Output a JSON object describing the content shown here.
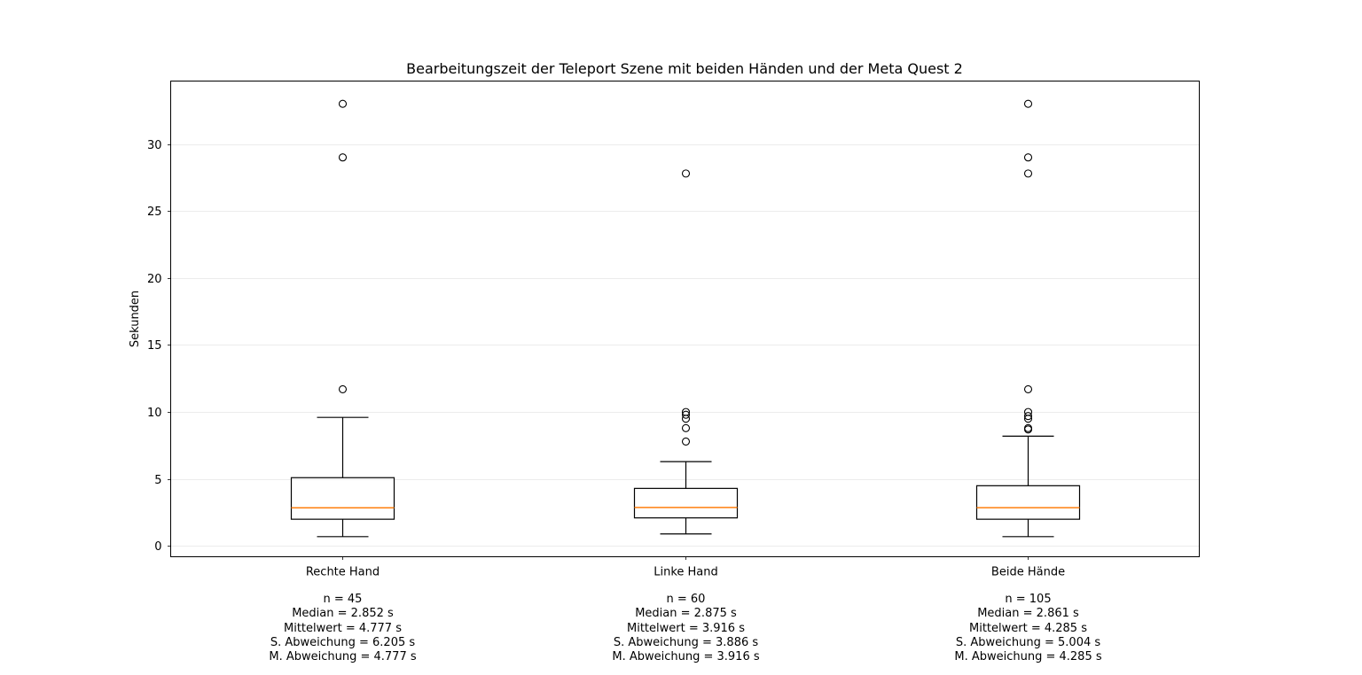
{
  "chart_data": {
    "type": "box",
    "title": "Bearbeitungszeit der Teleport Szene mit beiden Händen und der Meta Quest 2",
    "xlabel": "",
    "ylabel": "Sekunden",
    "ylim": [
      -0.8,
      34.7
    ],
    "yticks": [
      0,
      5,
      10,
      15,
      20,
      25,
      30
    ],
    "grid": "horizontal",
    "legend": "none",
    "box_color": "#000000",
    "median_color": "#ff7f0e",
    "series": [
      {
        "category": "Rechte Hand",
        "whisker_low": 0.7,
        "q1": 2.0,
        "median": 2.852,
        "q3": 5.1,
        "whisker_high": 9.6,
        "outliers": [
          11.7,
          29.0,
          33.0
        ],
        "stats": [
          "n = 45",
          "Median = 2.852 s",
          "Mittelwert = 4.777 s",
          "S. Abweichung = 6.205 s",
          "M. Abweichung = 4.777 s"
        ]
      },
      {
        "category": "Linke Hand",
        "whisker_low": 0.9,
        "q1": 2.1,
        "median": 2.875,
        "q3": 4.3,
        "whisker_high": 6.3,
        "outliers": [
          7.8,
          8.8,
          9.5,
          9.8,
          10.0,
          27.8
        ],
        "stats": [
          "n = 60",
          "Median = 2.875 s",
          "Mittelwert = 3.916 s",
          "S. Abweichung = 3.886 s",
          "M. Abweichung = 3.916 s"
        ]
      },
      {
        "category": "Beide Hände",
        "whisker_low": 0.7,
        "q1": 2.0,
        "median": 2.861,
        "q3": 4.5,
        "whisker_high": 8.2,
        "outliers": [
          8.7,
          8.8,
          9.5,
          9.7,
          10.0,
          11.7,
          27.8,
          29.0,
          33.0
        ],
        "stats": [
          "n = 105",
          "Median = 2.861 s",
          "Mittelwert = 4.285 s",
          "S. Abweichung = 5.004 s",
          "M. Abweichung = 4.285 s"
        ]
      }
    ]
  }
}
